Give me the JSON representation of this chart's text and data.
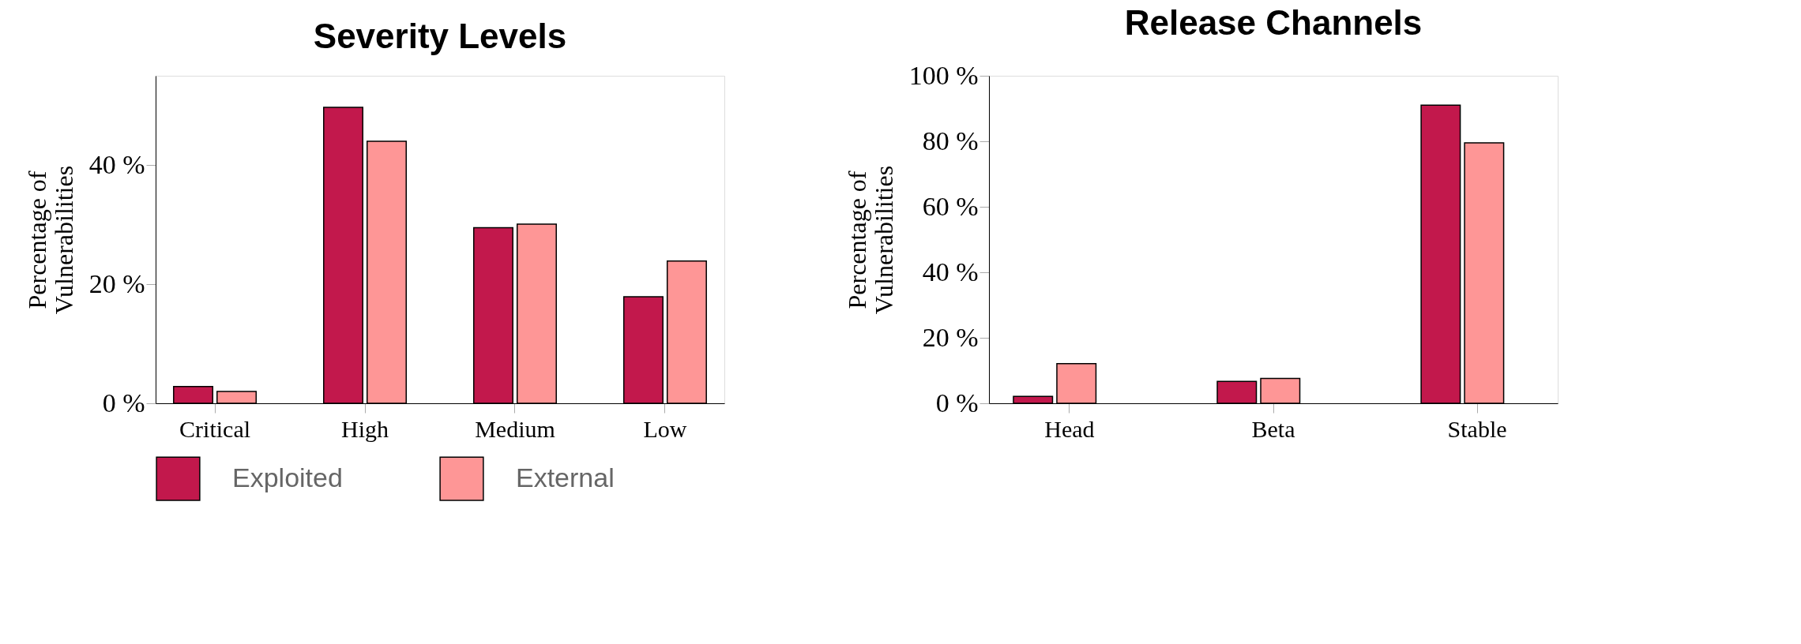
{
  "chart_data": [
    {
      "type": "bar",
      "title": "Severity Levels",
      "ylabel": "Percentage of\nVulnerabilities",
      "categories": [
        "Critical",
        "High",
        "Medium",
        "Low"
      ],
      "series": [
        {
          "name": "Exploited",
          "color": "#c2184c",
          "values": [
            2.8,
            49.7,
            29.5,
            17.9
          ]
        },
        {
          "name": "External",
          "color": "#fe9696",
          "values": [
            2.0,
            44.0,
            30.1,
            23.9
          ]
        }
      ],
      "ylim": [
        0,
        55
      ],
      "yticks": [
        {
          "value": 0,
          "label": "0 %"
        },
        {
          "value": 20,
          "label": "20 %"
        },
        {
          "value": 40,
          "label": "40 %"
        }
      ],
      "grid": false,
      "legend": "bottom"
    },
    {
      "type": "bar",
      "title": "Release Channels",
      "ylabel": "Percentage of\nVulnerabilities",
      "categories": [
        "Head",
        "Beta",
        "Stable"
      ],
      "series": [
        {
          "name": "Exploited",
          "color": "#c2184c",
          "values": [
            2.1,
            6.7,
            91.0
          ]
        },
        {
          "name": "External",
          "color": "#fe9696",
          "values": [
            12.1,
            7.6,
            79.5
          ]
        }
      ],
      "ylim": [
        0,
        100
      ],
      "yticks": [
        {
          "value": 0,
          "label": "0 %"
        },
        {
          "value": 20,
          "label": "20 %"
        },
        {
          "value": 40,
          "label": "40 %"
        },
        {
          "value": 60,
          "label": "60 %"
        },
        {
          "value": 80,
          "label": "80 %"
        },
        {
          "value": 100,
          "label": "100 %"
        }
      ],
      "grid": false,
      "legend": "bottom"
    }
  ]
}
